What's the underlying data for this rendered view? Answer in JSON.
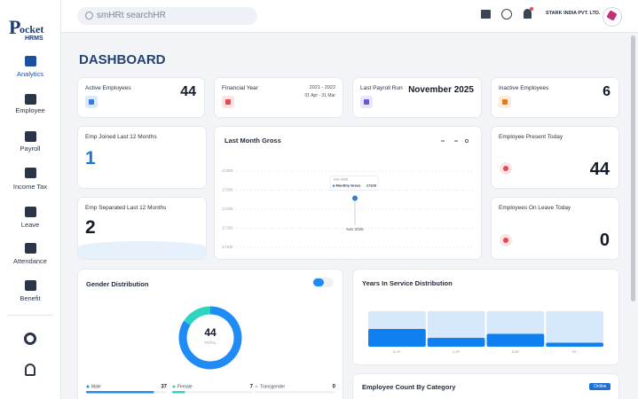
{
  "sidebar": {
    "logo_letter": "P",
    "logo_top": "ocket",
    "logo_bottom": "HRMS",
    "items": [
      "Analytics",
      "Employee",
      "Payroll",
      "Income Tax",
      "Leave",
      "Attendance",
      "Benefit"
    ]
  },
  "header": {
    "search": "smHRt searchHR",
    "company": "STARK INDIA PVT. LTD."
  },
  "page_title": "DASHBOARD",
  "stats": [
    {
      "label": "Active Employees",
      "value": 44
    },
    {
      "label": "Financial Year",
      "value": "2021 - 2022",
      "sub": "01 Apr - 31 Mar"
    },
    {
      "label": "Last Payroll Run",
      "value": "November 2025"
    },
    {
      "label": "Inactive Employees",
      "value": 6
    },
    {
      "label": "Emp Joined Last 12 Months",
      "value": 1
    },
    {
      "label": "Emp Separated Last 12 Months",
      "value": 2
    },
    {
      "label": "Employee Present Today",
      "value": 44
    },
    {
      "label": "Employees On Leave Today",
      "value": 0
    }
  ],
  "gross_chart": {
    "type": "line",
    "title": "Last Month Gross",
    "x": [
      "Nov 2025"
    ],
    "series": [
      {
        "name": "Monthly Gross",
        "color": "#2f7de1",
        "values": [
          17229
        ]
      }
    ],
    "ylim": [
      17100,
      17300
    ],
    "yticks": [
      17300,
      17250,
      17200,
      17150,
      17100
    ],
    "grid": true
  },
  "gender_chart": {
    "type": "donut",
    "title": "Gender Distribution",
    "total": 44,
    "total_label": "TOTAL",
    "categories": [
      "Male",
      "Female",
      "Transgender"
    ],
    "values": [
      37,
      7,
      0
    ],
    "colors": [
      "#1f8cf5",
      "#2dd4bf",
      "#c9ced6"
    ]
  },
  "service_chart": {
    "type": "bar",
    "title": "Years In Service Distribution",
    "categories": [
      "0-1Y",
      "1-3Y",
      "3-5Y",
      "5+"
    ],
    "values": [
      18,
      9,
      13,
      4
    ],
    "ylim": [
      0,
      36
    ],
    "color": "#1080f0",
    "track_color": "#d6e8fc"
  },
  "category_chart": {
    "title": "Employee Count By Category",
    "button": "Online"
  }
}
